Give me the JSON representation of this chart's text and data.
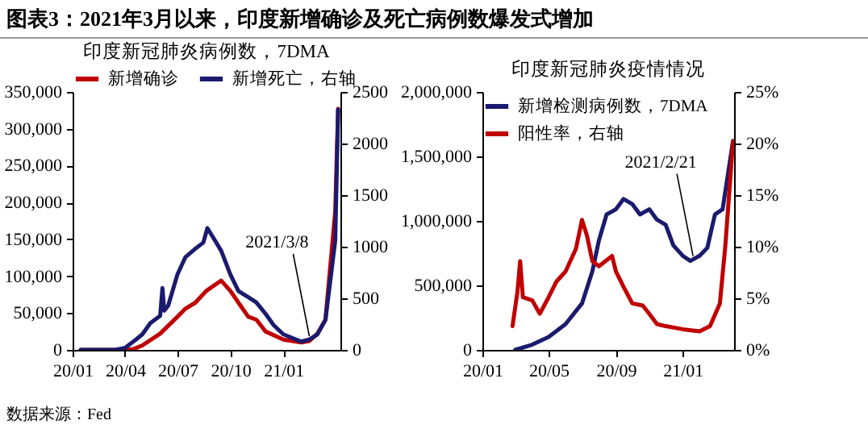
{
  "chart_data": [
    {
      "type": "line",
      "title": "印度新冠肺炎病例数，7DMA",
      "legend": "top",
      "annotations": [
        "图表3：2021年3月以来，印度新增确诊及死亡病例数爆发式增加",
        {
          "text": "2021/3/8",
          "x": "2021-02-15",
          "y": 12000
        }
      ],
      "xlim": [
        "2020-01-01",
        "2021-04-10"
      ],
      "xticks": [
        {
          "value": "2020-01",
          "label": "20/01"
        },
        {
          "value": "2020-04",
          "label": "20/04"
        },
        {
          "value": "2020-07",
          "label": "20/07"
        },
        {
          "value": "2020-10",
          "label": "20/10"
        },
        {
          "value": "2021-01",
          "label": "21/01"
        }
      ],
      "ylim": [
        0,
        350000
      ],
      "yticks": [
        0,
        {
          "value": 50000,
          "label": "50,000"
        },
        {
          "value": 100000,
          "label": "100,000"
        },
        {
          "value": 150000,
          "label": "150,000"
        },
        {
          "value": 200000,
          "label": "200,000"
        },
        {
          "value": 250000,
          "label": "250,000"
        },
        {
          "value": 300000,
          "label": "300,000"
        },
        {
          "value": 350000,
          "label": "350,000"
        }
      ],
      "y2lim": [
        0,
        2500
      ],
      "y2ticks": [
        0,
        500,
        1000,
        1500,
        2000,
        2500
      ],
      "series": [
        {
          "name": "新增确诊",
          "color": "#c00000",
          "x": [
            "2020-01-15",
            "2020-02-15",
            "2020-03-15",
            "2020-04-15",
            "2020-05-01",
            "2020-06-01",
            "2020-07-01",
            "2020-07-15",
            "2020-08-01",
            "2020-08-20",
            "2020-09-15",
            "2020-10-01",
            "2020-10-15",
            "2020-11-01",
            "2020-11-15",
            "2020-12-01",
            "2021-01-01",
            "2021-02-01",
            "2021-02-15",
            "2021-03-01",
            "2021-03-15",
            "2021-04-01",
            "2021-04-06"
          ],
          "values": [
            0,
            0,
            0,
            1000,
            6000,
            22000,
            45000,
            56000,
            64000,
            80000,
            94000,
            80000,
            64000,
            45000,
            41000,
            25000,
            14000,
            10000,
            12000,
            22000,
            41000,
            188000,
            327000
          ]
        },
        {
          "name": "新增死亡，右轴",
          "axis": "y2",
          "color": "#1a1a6e",
          "x": [
            "2020-01-15",
            "2020-02-15",
            "2020-03-15",
            "2020-04-01",
            "2020-04-20",
            "2020-05-01",
            "2020-05-15",
            "2020-06-01",
            "2020-06-05",
            "2020-06-08",
            "2020-06-15",
            "2020-07-01",
            "2020-07-15",
            "2020-08-01",
            "2020-08-15",
            "2020-08-22",
            "2020-09-01",
            "2020-09-15",
            "2020-10-01",
            "2020-10-15",
            "2020-11-01",
            "2020-11-15",
            "2020-12-01",
            "2020-12-15",
            "2021-01-01",
            "2021-02-01",
            "2021-02-15",
            "2021-03-01",
            "2021-03-15",
            "2021-04-01",
            "2021-04-06"
          ],
          "values": [
            0,
            0,
            0,
            20,
            100,
            150,
            260,
            330,
            600,
            380,
            430,
            730,
            900,
            980,
            1040,
            1180,
            1090,
            960,
            730,
            570,
            510,
            460,
            350,
            240,
            150,
            80,
            100,
            150,
            290,
            1060,
            2330
          ]
        }
      ]
    },
    {
      "type": "line",
      "title": "印度新冠肺炎疫情情况",
      "legend": "top left",
      "annotations": [
        "数据来源：Fed",
        {
          "text": "2021/2/21",
          "x": "2021-01-20",
          "y": 690000
        }
      ],
      "xlim": [
        "2020-01-01",
        "2021-04-05"
      ],
      "xticks": [
        {
          "value": "2020-01",
          "label": "20/01"
        },
        {
          "value": "2020-05",
          "label": "20/05"
        },
        {
          "value": "2020-09",
          "label": "20/09"
        },
        {
          "value": "2021-01",
          "label": "21/01"
        }
      ],
      "ylim": [
        0,
        2000000
      ],
      "yticks": [
        0,
        {
          "value": 500000,
          "label": "500,000"
        },
        {
          "value": 1000000,
          "label": "1,000,000"
        },
        {
          "value": 1500000,
          "label": "1,500,000"
        },
        {
          "value": 2000000,
          "label": "2,000,000"
        }
      ],
      "y2lim": [
        0,
        25
      ],
      "y2ticks": [
        {
          "value": 0,
          "label": "0%"
        },
        {
          "value": 5,
          "label": "5%"
        },
        {
          "value": 10,
          "label": "10%"
        },
        {
          "value": 15,
          "label": "15%"
        },
        {
          "value": 20,
          "label": "20%"
        },
        {
          "value": 25,
          "label": "25%"
        }
      ],
      "series": [
        {
          "name": "新增检测病例数，7DMA",
          "color": "#1a1a6e",
          "x": [
            "2020-03-01",
            "2020-04-01",
            "2020-05-01",
            "2020-06-01",
            "2020-07-01",
            "2020-07-20",
            "2020-08-01",
            "2020-08-15",
            "2020-09-01",
            "2020-09-15",
            "2020-10-01",
            "2020-10-15",
            "2020-11-01",
            "2020-11-15",
            "2020-12-01",
            "2020-12-15",
            "2021-01-01",
            "2021-01-15",
            "2021-02-01",
            "2021-02-15",
            "2021-03-01",
            "2021-03-15",
            "2021-04-03"
          ],
          "values": [
            0,
            40000,
            100000,
            200000,
            360000,
            610000,
            850000,
            1050000,
            1090000,
            1170000,
            1130000,
            1050000,
            1090000,
            1010000,
            970000,
            810000,
            730000,
            690000,
            730000,
            790000,
            1050000,
            1090000,
            1620000
          ]
        },
        {
          "name": "阳性率，右轴",
          "axis": "y2",
          "color": "#c00000",
          "x": [
            "2020-02-25",
            "2020-03-05",
            "2020-03-10",
            "2020-03-15",
            "2020-04-01",
            "2020-04-15",
            "2020-05-01",
            "2020-05-15",
            "2020-06-01",
            "2020-06-20",
            "2020-07-01",
            "2020-07-10",
            "2020-07-20",
            "2020-08-01",
            "2020-08-25",
            "2020-09-01",
            "2020-09-15",
            "2020-10-01",
            "2020-10-20",
            "2020-11-01",
            "2020-11-15",
            "2020-12-01",
            "2021-01-01",
            "2021-02-01",
            "2021-02-20",
            "2021-03-10",
            "2021-03-20",
            "2021-04-03"
          ],
          "values": [
            2.3,
            5.6,
            8.6,
            5.1,
            4.8,
            3.5,
            5.1,
            6.6,
            7.6,
            9.8,
            12.6,
            11.1,
            8.6,
            8.1,
            9.1,
            7.6,
            6.1,
            4.5,
            4.3,
            3.5,
            2.5,
            2.3,
            2.0,
            1.8,
            2.3,
            4.5,
            10.1,
            20.2
          ]
        }
      ]
    }
  ]
}
